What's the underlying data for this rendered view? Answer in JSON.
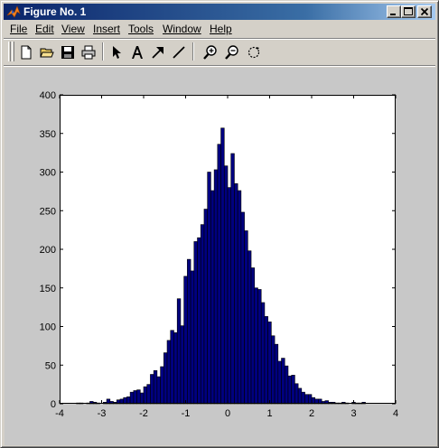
{
  "window": {
    "title": "Figure No. 1",
    "title_icon": "matlab-logo-icon",
    "buttons": [
      "minimize-icon",
      "maximize-icon",
      "close-icon"
    ]
  },
  "menu": {
    "items": [
      {
        "label": "File"
      },
      {
        "label": "Edit"
      },
      {
        "label": "View"
      },
      {
        "label": "Insert"
      },
      {
        "label": "Tools"
      },
      {
        "label": "Window"
      },
      {
        "label": "Help"
      }
    ]
  },
  "toolbar": {
    "buttons": [
      {
        "icon": "new-file-icon"
      },
      {
        "icon": "open-folder-icon"
      },
      {
        "icon": "save-disk-icon"
      },
      {
        "icon": "print-icon"
      },
      {
        "icon": "select-arrow-icon"
      },
      {
        "icon": "insert-text-icon"
      },
      {
        "icon": "insert-arrow-icon"
      },
      {
        "icon": "insert-line-icon"
      },
      {
        "icon": "zoom-in-icon"
      },
      {
        "icon": "zoom-out-icon"
      },
      {
        "icon": "rotate-3d-icon"
      }
    ]
  },
  "colors": {
    "bar_fill": "#000080",
    "bar_edge": "#000000",
    "figure_bg": "#c8c8c8",
    "axes_bg": "#ffffff"
  },
  "chart_data": {
    "type": "bar",
    "title": "",
    "xlabel": "",
    "ylabel": "",
    "xlim": [
      -4,
      4
    ],
    "ylim": [
      0,
      400
    ],
    "xticks": [
      -4,
      -3,
      -2,
      -1,
      0,
      1,
      2,
      3,
      4
    ],
    "yticks": [
      0,
      50,
      100,
      150,
      200,
      250,
      300,
      350,
      400
    ],
    "xtick_labels": [
      "-4",
      "-3",
      "-2",
      "-1",
      "0",
      "1",
      "2",
      "3",
      "4"
    ],
    "ytick_labels": [
      "0",
      "50",
      "100",
      "150",
      "200",
      "250",
      "300",
      "350",
      "400"
    ],
    "grid": false,
    "bin_start": -3.6,
    "bin_width": 0.08,
    "values": [
      1,
      1,
      0,
      1,
      3,
      2,
      1,
      0,
      2,
      6,
      3,
      2,
      5,
      6,
      8,
      9,
      15,
      17,
      18,
      14,
      22,
      25,
      38,
      43,
      35,
      48,
      66,
      82,
      95,
      92,
      136,
      101,
      165,
      187,
      172,
      210,
      215,
      232,
      252,
      300,
      276,
      303,
      336,
      357,
      308,
      280,
      324,
      285,
      276,
      248,
      224,
      198,
      176,
      150,
      148,
      131,
      113,
      106,
      88,
      77,
      55,
      59,
      49,
      36,
      37,
      26,
      20,
      15,
      12,
      12,
      8,
      6,
      6,
      3,
      4,
      2,
      2,
      1,
      1,
      2,
      1,
      0,
      2,
      1,
      1,
      2
    ]
  }
}
